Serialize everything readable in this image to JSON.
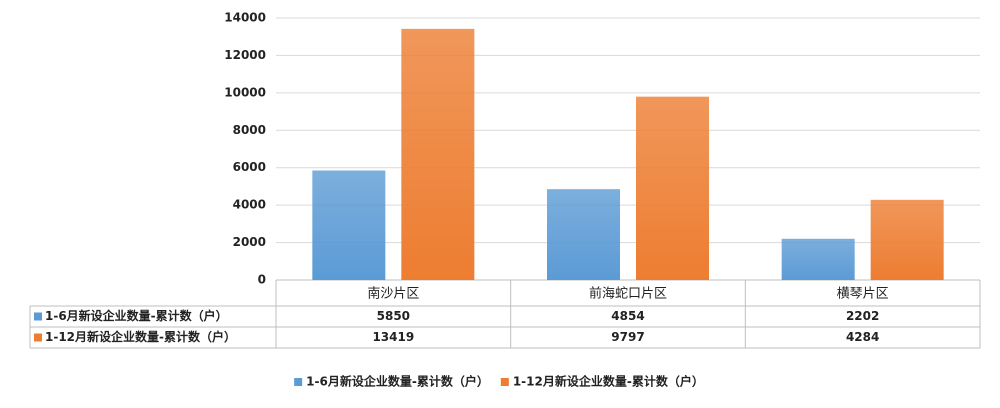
{
  "chart_data": {
    "type": "bar",
    "categories": [
      "南沙片区",
      "前海蛇口片区",
      "横琴片区"
    ],
    "series": [
      {
        "name": "1-6月新设企业数量-累计数（户）",
        "color": "#5b9bd5",
        "values": [
          5850,
          4854,
          2202
        ]
      },
      {
        "name": "1-12月新设企业数量-累计数（户）",
        "color": "#ed7d31",
        "values": [
          13419,
          9797,
          4284
        ]
      }
    ],
    "ylim": [
      0,
      14000
    ],
    "yticks": [
      0,
      2000,
      4000,
      6000,
      8000,
      10000,
      12000,
      14000
    ],
    "grid": true,
    "legend": "bottom"
  }
}
